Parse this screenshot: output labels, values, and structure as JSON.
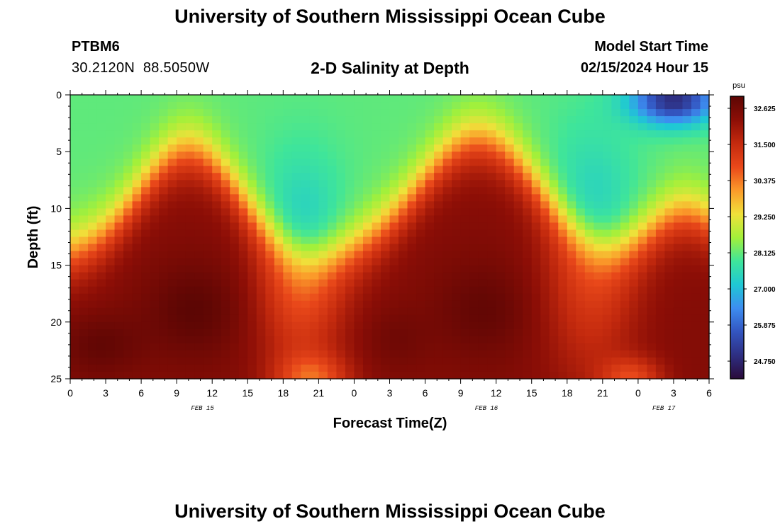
{
  "header": {
    "title": "University of Southern Mississippi Ocean Cube",
    "station_id": "PTBM6",
    "coords": "30.2120N  88.5050W",
    "plot_title": "2-D Salinity at Depth",
    "model_start_label": "Model Start Time",
    "model_start_value": "02/15/2024 Hour 15"
  },
  "footer": {
    "title": "University of Southern Mississippi Ocean Cube"
  },
  "chart_data": {
    "type": "heatmap",
    "title": "2-D Salinity at Depth",
    "xlabel": "Forecast Time(Z)",
    "ylabel": "Depth (ft)",
    "x_range_hours": [
      0,
      54
    ],
    "y_range_ft": [
      0,
      25
    ],
    "x_tick_labels": [
      "0",
      "3",
      "6",
      "9",
      "12",
      "15",
      "18",
      "21",
      "0",
      "3",
      "6",
      "9",
      "12",
      "15",
      "18",
      "21",
      "0",
      "3",
      "6"
    ],
    "y_tick_labels": [
      "0",
      "5",
      "10",
      "15",
      "20",
      "25"
    ],
    "date_labels": [
      {
        "text": "FEB 15",
        "hour": 11
      },
      {
        "text": "FEB 16",
        "hour": 35
      },
      {
        "text": "FEB 17",
        "hour": 50
      }
    ],
    "colorbar": {
      "unit": "psu",
      "min": 24.2,
      "max": 33.0,
      "tick_values": [
        "32.625",
        "31.500",
        "30.375",
        "29.250",
        "28.125",
        "27.000",
        "25.875",
        "24.750"
      ]
    },
    "colors": [
      "#2a0a3a",
      "#2e2f82",
      "#3355c0",
      "#3d8df0",
      "#1fc8d4",
      "#3fe59a",
      "#a3f03a",
      "#f0e13a",
      "#fb9a2a",
      "#e9481a",
      "#c42a0e",
      "#8c0e06",
      "#5c0604"
    ]
  }
}
